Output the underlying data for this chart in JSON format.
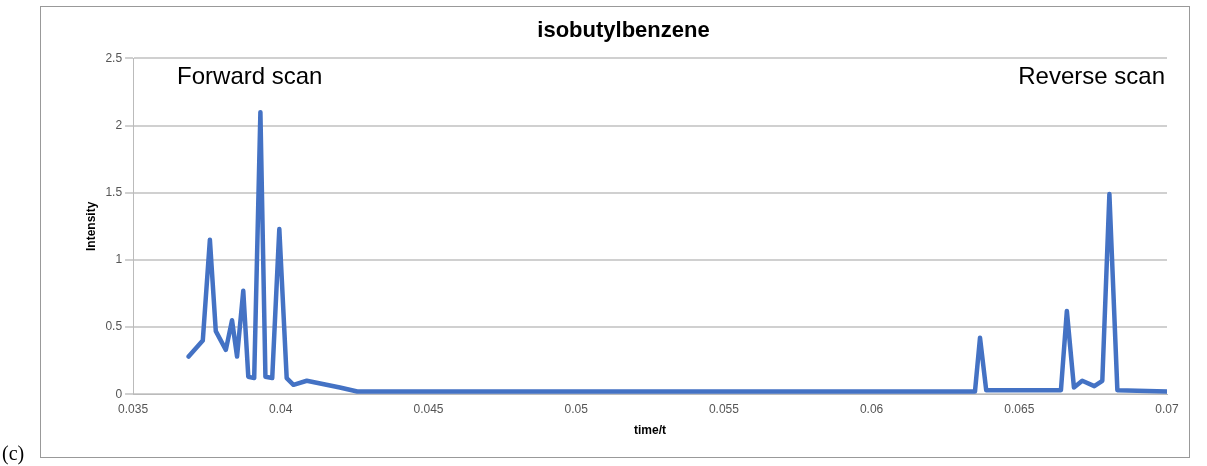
{
  "chart_data": {
    "type": "line",
    "title": "isobutylbenzene",
    "xlabel": "time/t",
    "ylabel": "Intensity",
    "annotations": [
      "Forward scan",
      "Reverse scan",
      "(c)"
    ],
    "series": [
      {
        "color": "#4472c4",
        "x": [
          0.03688,
          0.03736,
          0.0376,
          0.0378,
          0.03814,
          0.03835,
          0.03852,
          0.03873,
          0.0389,
          0.0391,
          0.03931,
          0.03948,
          0.03971,
          0.03995,
          0.0402,
          0.04043,
          0.04088,
          0.042,
          0.04259,
          0.0635,
          0.06367,
          0.06388,
          0.06641,
          0.06661,
          0.06685,
          0.06713,
          0.06754,
          0.06781,
          0.06805,
          0.06832,
          0.07
        ],
        "values": [
          0.28,
          0.4,
          1.15,
          0.47,
          0.33,
          0.55,
          0.28,
          0.77,
          0.13,
          0.12,
          2.1,
          0.13,
          0.12,
          1.23,
          0.12,
          0.07,
          0.1,
          0.05,
          0.02,
          0.02,
          0.42,
          0.03,
          0.03,
          0.62,
          0.05,
          0.1,
          0.06,
          0.1,
          1.49,
          0.03,
          0.02
        ]
      }
    ],
    "xlim": [
      0.035,
      0.07
    ],
    "xticks": [
      0.035,
      0.04,
      0.045,
      0.05,
      0.055,
      0.06,
      0.065,
      0.07
    ],
    "ylim": [
      0,
      2.5
    ],
    "yticks": [
      0,
      0.5,
      1,
      1.5,
      2,
      2.5
    ],
    "grid": "y",
    "legend": false,
    "marker": "none",
    "line_style": "solid"
  }
}
